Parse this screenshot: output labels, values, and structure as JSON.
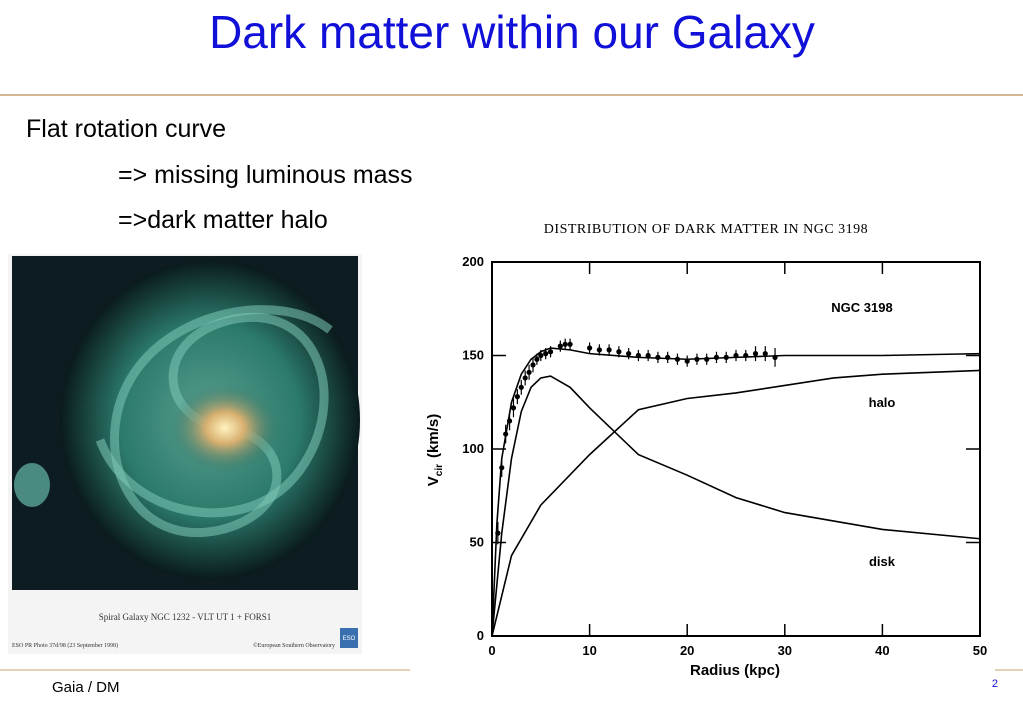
{
  "header": {
    "title": "Dark matter within our Galaxy"
  },
  "bullets": [
    "Flat rotation curve",
    "=> missing luminous mass",
    "=>dark matter halo"
  ],
  "image": {
    "caption": "Spiral Galaxy NGC 1232 - VLT UT 1 + FORS1",
    "credit_left": "ESO PR Photo 37d/98 (23 September 1998)",
    "credit_right": "©European Southern Observatory",
    "logo": "ESO"
  },
  "footer": {
    "left": "Gaia / DM",
    "page": "2"
  },
  "chart_data": {
    "type": "line",
    "title": "DISTRIBUTION OF DARK MATTER IN NGC 3198",
    "xlabel": "Radius (kpc)",
    "ylabel": "V",
    "ylabel_sub": "cir",
    "ylabel_unit": "(km/s)",
    "annotations": [
      "NGC 3198",
      "halo",
      "disk"
    ],
    "xlim": [
      0,
      50
    ],
    "ylim": [
      0,
      200
    ],
    "xticks": [
      0,
      10,
      20,
      30,
      40,
      50
    ],
    "yticks": [
      0,
      50,
      100,
      150,
      200
    ],
    "color": "#000000",
    "series": [
      {
        "x": [
          0,
          0.5,
          1,
          2,
          3,
          4,
          5,
          6,
          8,
          10,
          15,
          20,
          25,
          30,
          40,
          50
        ],
        "values": [
          0,
          60,
          95,
          125,
          140,
          148,
          152,
          154,
          153,
          151,
          149,
          148,
          149,
          150,
          150,
          151
        ]
      },
      {
        "x": [
          0,
          2,
          5,
          10,
          15,
          20,
          25,
          30,
          35,
          40,
          45,
          50
        ],
        "values": [
          0,
          43,
          70,
          97,
          121,
          127,
          130,
          134,
          138,
          140,
          141,
          142
        ]
      },
      {
        "x": [
          0,
          1,
          2,
          3,
          4,
          5,
          6,
          8,
          10,
          15,
          20,
          25,
          30,
          40,
          50
        ],
        "values": [
          0,
          55,
          95,
          120,
          133,
          138,
          139,
          133,
          122,
          97,
          86,
          74,
          66,
          57,
          52
        ]
      },
      {
        "type": "scatter",
        "x": [
          0.6,
          1,
          1.4,
          1.8,
          2.2,
          2.6,
          3,
          3.4,
          3.8,
          4.2,
          4.6,
          5,
          5.5,
          6,
          7,
          7.5,
          8,
          10,
          11,
          12,
          13,
          14,
          15,
          16,
          17,
          18,
          19,
          20,
          21,
          22,
          23,
          24,
          25,
          26,
          27,
          28,
          29
        ],
        "values": [
          55,
          90,
          108,
          115,
          122,
          128,
          133,
          138,
          141,
          145,
          148,
          150,
          151,
          152,
          155,
          156,
          156,
          154,
          153,
          153,
          152,
          151,
          150,
          150,
          149,
          149,
          148,
          147,
          148,
          148,
          149,
          149,
          150,
          150,
          151,
          151,
          149
        ],
        "errors": [
          6,
          5,
          5,
          5,
          5,
          4,
          4,
          4,
          4,
          4,
          3,
          3,
          3,
          3,
          3,
          3,
          3,
          3,
          3,
          3,
          3,
          3,
          3,
          3,
          3,
          3,
          3,
          3,
          3,
          3,
          3,
          3,
          3,
          3,
          4,
          4,
          5
        ]
      }
    ]
  }
}
